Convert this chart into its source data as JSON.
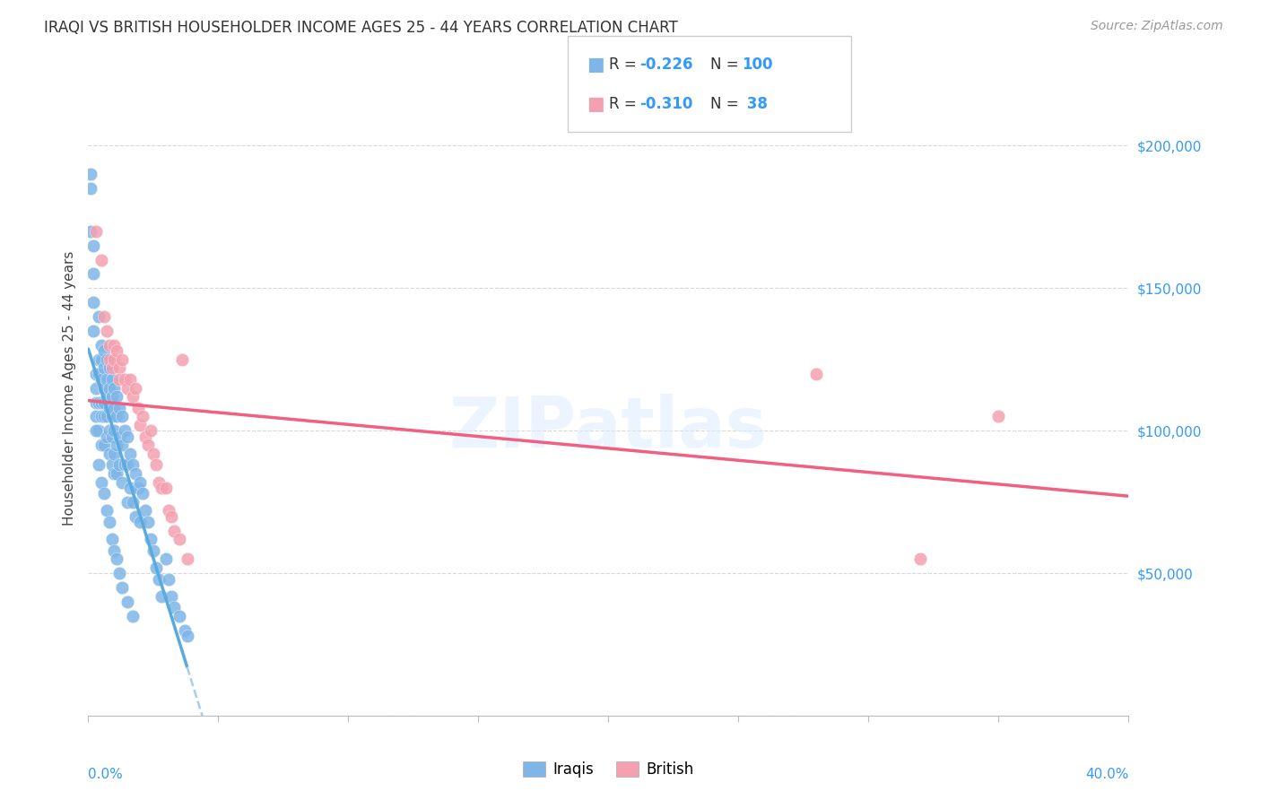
{
  "title": "IRAQI VS BRITISH HOUSEHOLDER INCOME AGES 25 - 44 YEARS CORRELATION CHART",
  "source": "Source: ZipAtlas.com",
  "ylabel": "Householder Income Ages 25 - 44 years",
  "xlim": [
    0.0,
    0.4
  ],
  "ylim": [
    0,
    230000
  ],
  "yticks": [
    0,
    50000,
    100000,
    150000,
    200000
  ],
  "ytick_labels": [
    "",
    "$50,000",
    "$100,000",
    "$150,000",
    "$200,000"
  ],
  "background_color": "#ffffff",
  "grid_color": "#d8d8d8",
  "iraqi_color": "#7EB6E8",
  "british_color": "#F4A0B0",
  "watermark": "ZIPatlas",
  "iraqi_R": -0.226,
  "iraqi_N": 100,
  "british_R": -0.31,
  "british_N": 38,
  "regression_line_color_iraqi": "#5AAAE0",
  "regression_line_color_british": "#F06080",
  "regression_dashed_color": "#AACCEE",
  "iraqi_scatter_x": [
    0.001,
    0.001,
    0.002,
    0.002,
    0.002,
    0.003,
    0.003,
    0.003,
    0.003,
    0.004,
    0.004,
    0.004,
    0.004,
    0.004,
    0.005,
    0.005,
    0.005,
    0.005,
    0.005,
    0.005,
    0.006,
    0.006,
    0.006,
    0.006,
    0.006,
    0.006,
    0.007,
    0.007,
    0.007,
    0.007,
    0.007,
    0.008,
    0.008,
    0.008,
    0.008,
    0.008,
    0.009,
    0.009,
    0.009,
    0.009,
    0.009,
    0.01,
    0.01,
    0.01,
    0.01,
    0.01,
    0.011,
    0.011,
    0.011,
    0.011,
    0.012,
    0.012,
    0.012,
    0.013,
    0.013,
    0.013,
    0.014,
    0.014,
    0.015,
    0.015,
    0.015,
    0.016,
    0.016,
    0.017,
    0.017,
    0.018,
    0.018,
    0.019,
    0.02,
    0.02,
    0.021,
    0.022,
    0.023,
    0.024,
    0.025,
    0.026,
    0.027,
    0.028,
    0.03,
    0.031,
    0.032,
    0.033,
    0.035,
    0.037,
    0.038,
    0.001,
    0.002,
    0.003,
    0.004,
    0.005,
    0.006,
    0.007,
    0.008,
    0.009,
    0.01,
    0.011,
    0.012,
    0.013,
    0.015,
    0.017
  ],
  "iraqi_scatter_y": [
    185000,
    170000,
    165000,
    145000,
    135000,
    120000,
    115000,
    110000,
    105000,
    140000,
    125000,
    120000,
    110000,
    100000,
    130000,
    125000,
    118000,
    110000,
    105000,
    95000,
    128000,
    122000,
    115000,
    110000,
    105000,
    95000,
    125000,
    118000,
    112000,
    105000,
    98000,
    122000,
    115000,
    108000,
    100000,
    92000,
    118000,
    112000,
    105000,
    98000,
    88000,
    115000,
    108000,
    100000,
    92000,
    85000,
    112000,
    105000,
    95000,
    85000,
    108000,
    98000,
    88000,
    105000,
    95000,
    82000,
    100000,
    88000,
    98000,
    88000,
    75000,
    92000,
    80000,
    88000,
    75000,
    85000,
    70000,
    80000,
    82000,
    68000,
    78000,
    72000,
    68000,
    62000,
    58000,
    52000,
    48000,
    42000,
    55000,
    48000,
    42000,
    38000,
    35000,
    30000,
    28000,
    190000,
    155000,
    100000,
    88000,
    82000,
    78000,
    72000,
    68000,
    62000,
    58000,
    55000,
    50000,
    45000,
    40000,
    35000
  ],
  "british_scatter_x": [
    0.003,
    0.005,
    0.006,
    0.007,
    0.008,
    0.008,
    0.009,
    0.01,
    0.01,
    0.011,
    0.012,
    0.012,
    0.013,
    0.014,
    0.015,
    0.016,
    0.017,
    0.018,
    0.019,
    0.02,
    0.021,
    0.022,
    0.023,
    0.024,
    0.025,
    0.026,
    0.027,
    0.028,
    0.03,
    0.031,
    0.032,
    0.033,
    0.035,
    0.036,
    0.038,
    0.35,
    0.28,
    0.32
  ],
  "british_scatter_y": [
    170000,
    160000,
    140000,
    135000,
    130000,
    125000,
    122000,
    130000,
    125000,
    128000,
    122000,
    118000,
    125000,
    118000,
    115000,
    118000,
    112000,
    115000,
    108000,
    102000,
    105000,
    98000,
    95000,
    100000,
    92000,
    88000,
    82000,
    80000,
    80000,
    72000,
    70000,
    65000,
    62000,
    125000,
    55000,
    105000,
    120000,
    55000
  ]
}
